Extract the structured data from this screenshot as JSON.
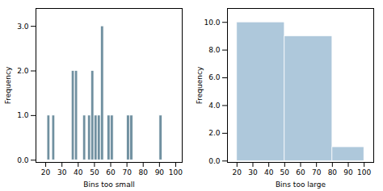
{
  "chart_data": [
    {
      "type": "bar",
      "xlabel": "Bins too small",
      "ylabel": "Frequency",
      "x": [
        21,
        24,
        36,
        38,
        43,
        46,
        48,
        50,
        52,
        54,
        58,
        60,
        70,
        72,
        90
      ],
      "values": [
        1,
        1,
        2,
        2,
        1,
        1,
        2,
        1,
        1,
        3,
        1,
        1,
        1,
        1,
        1
      ],
      "bar_width": 1.8,
      "color": "#7090a0",
      "xlim": [
        14,
        104
      ],
      "ylim": [
        -0.05,
        3.4
      ],
      "xticks": [
        20,
        30,
        40,
        50,
        60,
        70,
        80,
        90,
        100
      ],
      "yticks": [
        {
          "value": 0.0,
          "label": "0.0"
        },
        {
          "value": 1.0,
          "label": "1.0"
        },
        {
          "value": 2.0,
          "label": "2.0"
        },
        {
          "value": 3.0,
          "label": "3.0"
        }
      ]
    },
    {
      "type": "histogram",
      "xlabel": "Bins too large",
      "ylabel": "Frequency",
      "bins": [
        20,
        50,
        80,
        100
      ],
      "values": [
        10,
        9,
        1
      ],
      "color": "#aec8db",
      "xlim": [
        14,
        106
      ],
      "ylim": [
        -0.1,
        11.0
      ],
      "xticks": [
        20,
        30,
        40,
        50,
        60,
        70,
        80,
        90,
        100
      ],
      "yticks": [
        {
          "value": 0.0,
          "label": "0.0"
        },
        {
          "value": 2.0,
          "label": "2.0"
        },
        {
          "value": 4.0,
          "label": "4.0"
        },
        {
          "value": 6.0,
          "label": "6.0"
        },
        {
          "value": 8.0,
          "label": "8.0"
        },
        {
          "value": 10.0,
          "label": "10.0"
        }
      ]
    }
  ]
}
